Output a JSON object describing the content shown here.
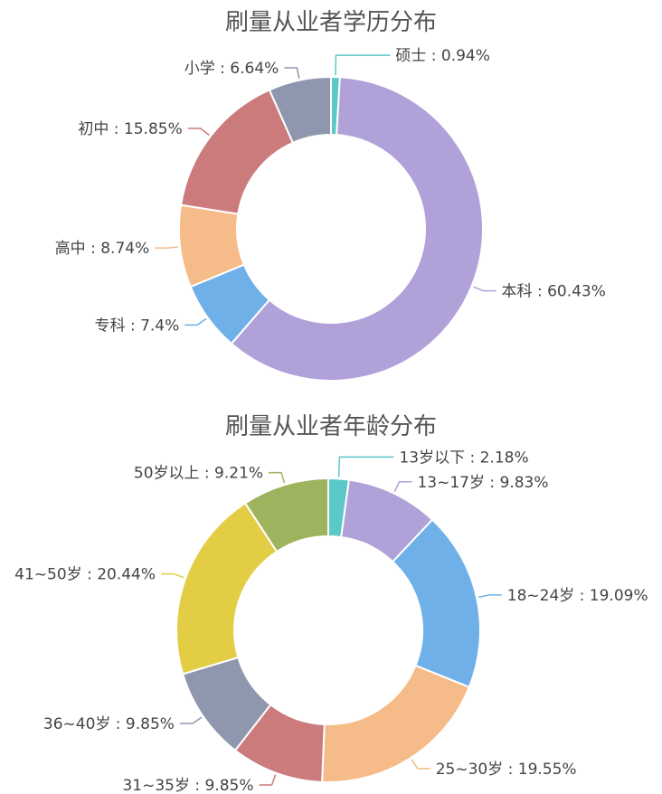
{
  "chart_data": [
    {
      "type": "pie",
      "variant": "donut",
      "title": "刷量从业者学历分布",
      "slices": [
        {
          "label": "硕士",
          "value": 0.94,
          "display": "硕士 : 0.94%",
          "color": "#5cc8c8"
        },
        {
          "label": "本科",
          "value": 60.43,
          "display": "本科 : 60.43%",
          "color": "#b0a1d9"
        },
        {
          "label": "专科",
          "value": 7.4,
          "display": "专科 : 7.4%",
          "color": "#6fb0e8"
        },
        {
          "label": "高中",
          "value": 8.74,
          "display": "高中 : 8.74%",
          "color": "#f5bb88"
        },
        {
          "label": "初中",
          "value": 15.85,
          "display": "初中 : 15.85%",
          "color": "#cc7b7d"
        },
        {
          "label": "小学",
          "value": 6.64,
          "display": "小学 : 6.64%",
          "color": "#8f97ae"
        }
      ]
    },
    {
      "type": "pie",
      "variant": "donut",
      "title": "刷量从业者年龄分布",
      "slices": [
        {
          "label": "13岁以下",
          "value": 2.18,
          "display": "13岁以下 : 2.18%",
          "color": "#5cc8c8"
        },
        {
          "label": "13~17岁",
          "value": 9.83,
          "display": "13~17岁 : 9.83%",
          "color": "#b0a1d9"
        },
        {
          "label": "18~24岁",
          "value": 19.09,
          "display": "18~24岁 : 19.09%",
          "color": "#6fb0e8"
        },
        {
          "label": "25~30岁",
          "value": 19.55,
          "display": "25~30岁 : 19.55%",
          "color": "#f5bb88"
        },
        {
          "label": "31~35岁",
          "value": 9.85,
          "display": "31~35岁 : 9.85%",
          "color": "#cc7b7d"
        },
        {
          "label": "36~40岁",
          "value": 9.85,
          "display": "36~40岁 : 9.85%",
          "color": "#8f97ae"
        },
        {
          "label": "41~50岁",
          "value": 20.44,
          "display": "41~50岁 : 20.44%",
          "color": "#e2cd45"
        },
        {
          "label": "50岁以上",
          "value": 9.21,
          "display": "50岁以上 : 9.21%",
          "color": "#9db35e"
        }
      ]
    }
  ]
}
